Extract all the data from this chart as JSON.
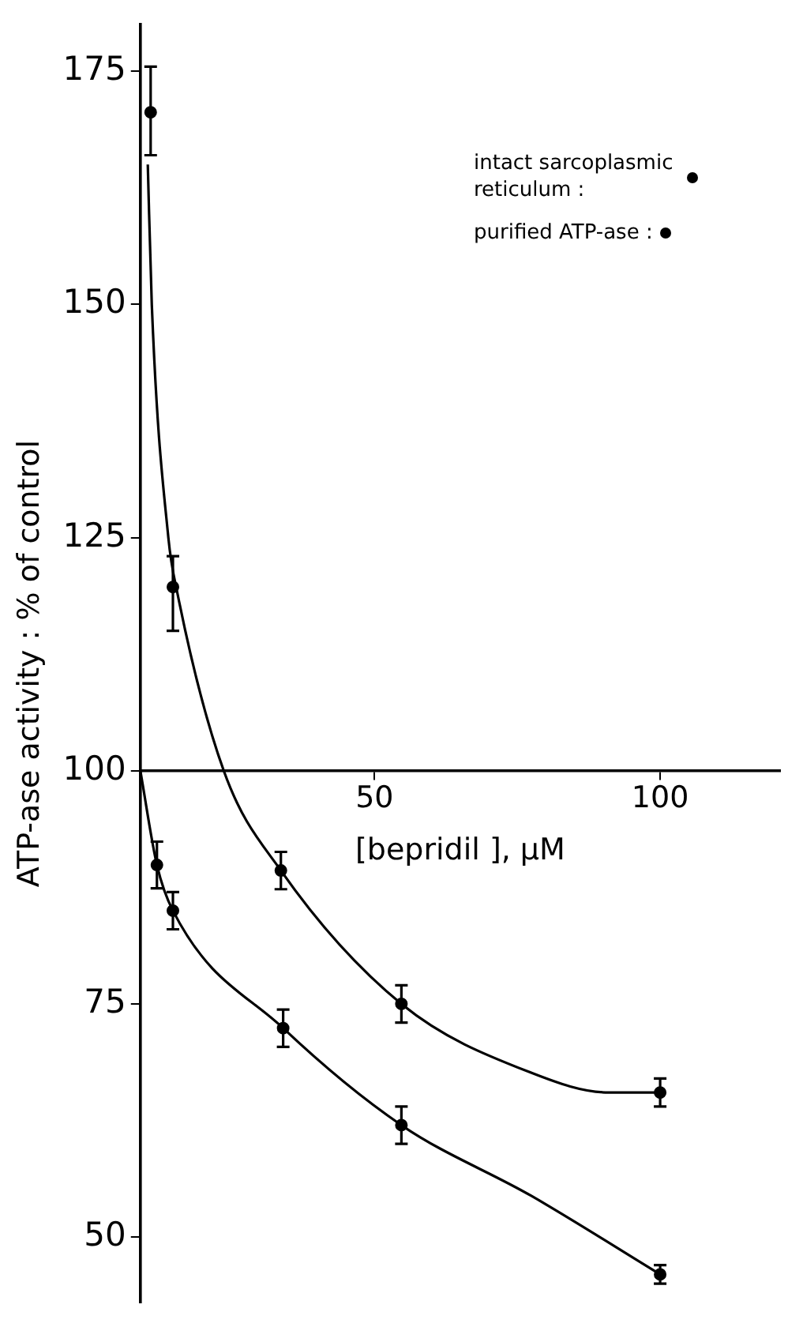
{
  "chart_data": {
    "type": "scatter",
    "xlabel": "[bepridil ], μM",
    "ylabel": "ATP-ase activity : % of control",
    "xlim": [
      9,
      121
    ],
    "xticks": [
      50,
      100
    ],
    "ylim": [
      43,
      180
    ],
    "yticks": [
      50,
      75,
      100,
      125,
      150,
      175
    ],
    "grid": false,
    "legend": "top right",
    "marker": "circle",
    "series": [
      {
        "name": "intact sarcoplasmic reticulum :",
        "color": "#000000",
        "x": [
          10.8,
          14.7,
          33.6,
          54.7,
          100
        ],
        "values": [
          170.6,
          119.7,
          89.3,
          75,
          65.5
        ],
        "errors": [
          [
            166,
            175.5
          ],
          [
            115,
            123
          ],
          2,
          2,
          1.5
        ]
      },
      {
        "name": "purified ATP-ase :",
        "color": "#000000",
        "x": [
          11.9,
          14.7,
          34,
          54.7,
          100
        ],
        "values": [
          89.9,
          85,
          72.4,
          62,
          46
        ],
        "errors": [
          2.5,
          2,
          2,
          2,
          1
        ]
      },
      {
        "type": "line",
        "color": "#000000",
        "marker": "none",
        "x": [
          10.3,
          11,
          13.9,
          15.5,
          23.6,
          33.6,
          54.7,
          77.5,
          91,
          100
        ],
        "values": [
          165,
          150,
          125,
          119,
          100,
          89.3,
          75,
          67.6,
          65.5,
          65.5
        ]
      },
      {
        "type": "line",
        "color": "#000000",
        "marker": "none",
        "x": [
          9,
          11.9,
          14.7,
          34,
          54.7,
          77.5,
          100
        ],
        "values": [
          100,
          89.9,
          85,
          72.4,
          62,
          54.4,
          46
        ]
      }
    ]
  }
}
